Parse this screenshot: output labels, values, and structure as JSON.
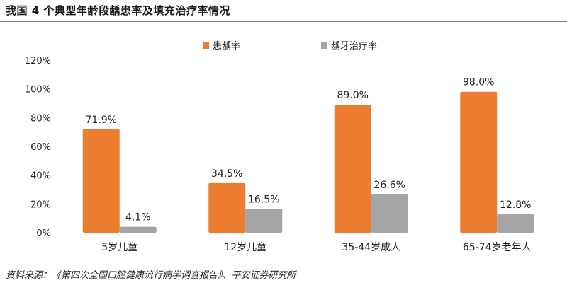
{
  "header": {
    "title": "我国 4 个典型年龄段龋患率及填充治疗率情况"
  },
  "footer": {
    "source": "资料来源：《第四次全国口腔健康流行病学调查报告》、平安证券研究所"
  },
  "chart_data": {
    "type": "bar",
    "categories": [
      "5岁儿童",
      "12岁儿童",
      "35-44岁成人",
      "65-74岁老年人"
    ],
    "series": [
      {
        "name": "患龋率",
        "color": "#ED7D31",
        "values": [
          71.9,
          34.5,
          89.0,
          98.0
        ],
        "labels": [
          "71.9%",
          "34.5%",
          "89.0%",
          "98.0%"
        ]
      },
      {
        "name": "龋牙治疗率",
        "color": "#A5A5A5",
        "values": [
          4.1,
          16.5,
          26.6,
          12.8
        ],
        "labels": [
          "4.1%",
          "16.5%",
          "26.6%",
          "12.8%"
        ]
      }
    ],
    "yticks": [
      "0%",
      "20%",
      "40%",
      "60%",
      "80%",
      "100%",
      "120%"
    ],
    "ylim": [
      0,
      120
    ],
    "grid": false,
    "legend": "top-center",
    "title": "我国 4 个典型年龄段龋患率及填充治疗率情况",
    "xlabel": "",
    "ylabel": ""
  }
}
